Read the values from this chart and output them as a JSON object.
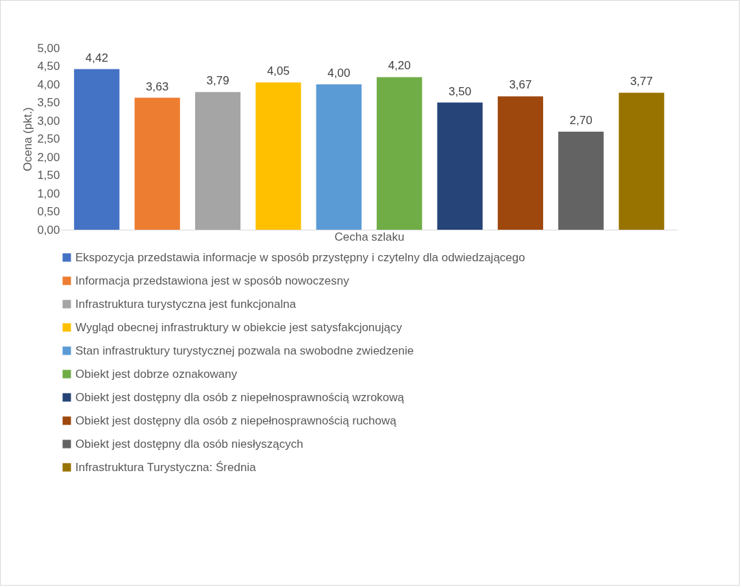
{
  "chart_data": {
    "type": "bar",
    "xlabel": "Cecha szlaku",
    "ylabel": "Ocena (pkt.)",
    "categories": [
      null
    ],
    "ylim": [
      0,
      5
    ],
    "yticks": [
      {
        "value": 0,
        "label": "0,00"
      },
      {
        "value": 0.5,
        "label": "0,50"
      },
      {
        "value": 1,
        "label": "1,00"
      },
      {
        "value": 1.5,
        "label": "1,50"
      },
      {
        "value": 2,
        "label": "2,00"
      },
      {
        "value": 2.5,
        "label": "2,50"
      },
      {
        "value": 3,
        "label": "3,00"
      },
      {
        "value": 3.5,
        "label": "3,50"
      },
      {
        "value": 4,
        "label": "4,00"
      },
      {
        "value": 4.5,
        "label": "4,50"
      },
      {
        "value": 5,
        "label": "5,00"
      }
    ],
    "legend": "bottom",
    "series": [
      {
        "name": "Ekspozycja przedstawia informacje w sposób przystępny i czytelny dla odwiedzającego",
        "color": "#4472c4",
        "values": [
          4.42
        ],
        "value_labels": [
          "4,42"
        ]
      },
      {
        "name": "Informacja przedstawiona jest w sposób nowoczesny",
        "color": "#ed7d31",
        "values": [
          3.63
        ],
        "value_labels": [
          "3,63"
        ]
      },
      {
        "name": "Infrastruktura turystyczna jest funkcjonalna",
        "color": "#a5a5a5",
        "values": [
          3.79
        ],
        "value_labels": [
          "3,79"
        ]
      },
      {
        "name": "Wygląd obecnej infrastruktury w obiekcie jest satysfakcjonujący",
        "color": "#ffc000",
        "values": [
          4.05
        ],
        "value_labels": [
          "4,05"
        ]
      },
      {
        "name": "Stan infrastruktury turystycznej pozwala na swobodne zwiedzenie",
        "color": "#5b9bd5",
        "values": [
          4.0
        ],
        "value_labels": [
          "4,00"
        ]
      },
      {
        "name": "Obiekt jest dobrze oznakowany",
        "color": "#70ad47",
        "values": [
          4.2
        ],
        "value_labels": [
          "4,20"
        ]
      },
      {
        "name": "Obiekt jest dostępny dla osób z niepełnosprawnością wzrokową",
        "color": "#264478",
        "values": [
          3.5
        ],
        "value_labels": [
          "3,50"
        ]
      },
      {
        "name": "Obiekt jest dostępny dla osób z niepełnosprawnością ruchową",
        "color": "#9e480e",
        "values": [
          3.67
        ],
        "value_labels": [
          "3,67"
        ]
      },
      {
        "name": "Obiekt jest dostępny dla osób niesłyszących",
        "color": "#636363",
        "values": [
          2.7
        ],
        "value_labels": [
          "2,70"
        ]
      },
      {
        "name": "Infrastruktura Turystyczna: Średnia",
        "color": "#997300",
        "values": [
          3.77
        ],
        "value_labels": [
          "3,77"
        ]
      }
    ]
  }
}
